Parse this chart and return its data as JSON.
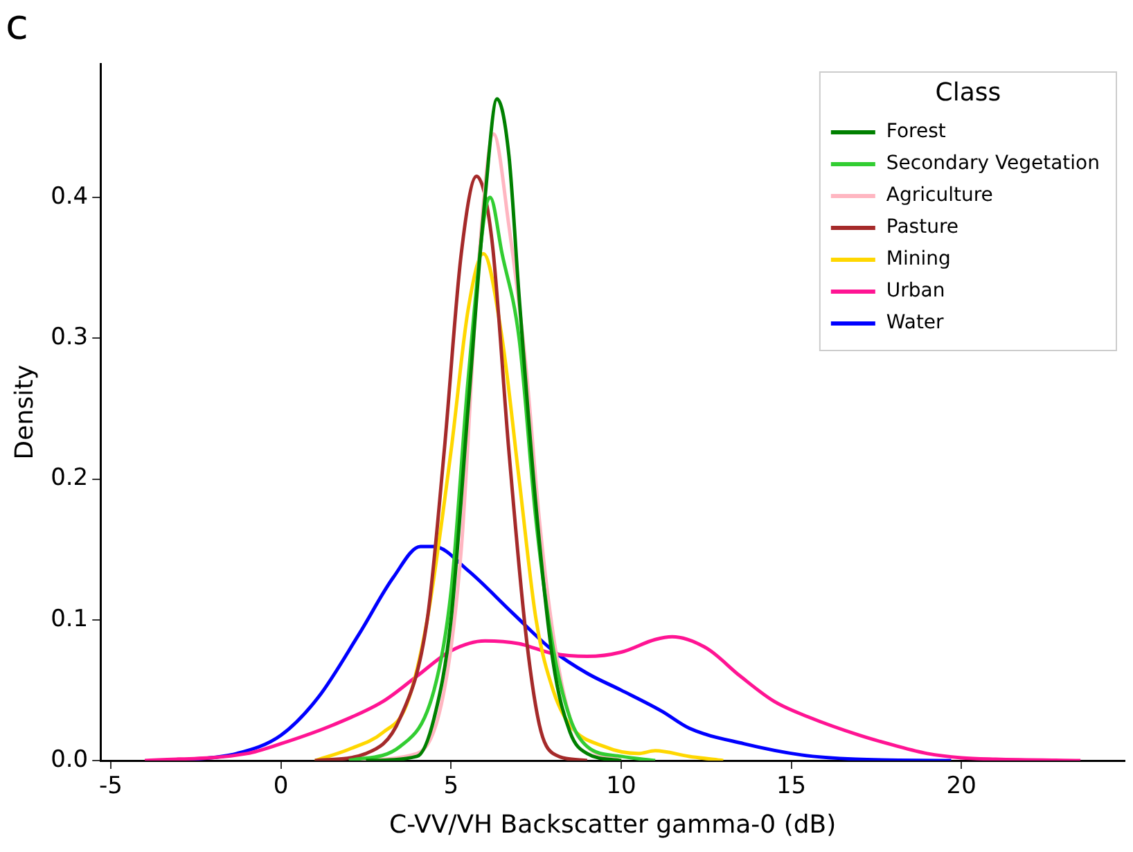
{
  "chart_data": {
    "type": "line",
    "title": "c",
    "xlabel": "C-VV/VH Backscatter gamma-0 (dB)",
    "ylabel": "Density",
    "legend_title": "Class",
    "legend": "top right",
    "grid": false,
    "marker": "none",
    "line_style": "solid",
    "xlim": [
      -5.3,
      24.8
    ],
    "ylim": [
      0,
      0.495
    ],
    "xticks": [
      -5,
      0,
      5,
      10,
      15,
      20
    ],
    "yticks": [
      {
        "value": 0,
        "label": "0.0"
      },
      {
        "value": 0.1,
        "label": "0.1"
      },
      {
        "value": 0.2,
        "label": "0.2"
      },
      {
        "value": 0.3,
        "label": "0.3"
      },
      {
        "value": 0.4,
        "label": "0.4"
      }
    ],
    "series": [
      {
        "name": "Forest",
        "color": "#008000",
        "x": [
          2.5,
          4,
          4.5,
          5,
          5.5,
          6,
          6.35,
          6.7,
          7,
          7.5,
          8,
          8.5,
          9,
          10
        ],
        "values": [
          0,
          0.003,
          0.03,
          0.1,
          0.25,
          0.4,
          0.47,
          0.43,
          0.33,
          0.18,
          0.07,
          0.02,
          0.005,
          0
        ]
      },
      {
        "name": "Secondary Vegetation",
        "color": "#32cd32",
        "x": [
          2,
          3.5,
          4.5,
          5,
          5.5,
          6,
          6.15,
          6.5,
          7,
          7.5,
          8,
          8.5,
          9,
          10,
          11
        ],
        "values": [
          0,
          0.01,
          0.05,
          0.12,
          0.27,
          0.39,
          0.4,
          0.36,
          0.3,
          0.17,
          0.08,
          0.03,
          0.01,
          0.003,
          0
        ]
      },
      {
        "name": "Agriculture",
        "color": "#ffb6c1",
        "x": [
          2,
          4,
          4.8,
          5.3,
          5.8,
          6.25,
          6.7,
          7.2,
          7.6,
          8,
          8.5,
          9,
          10
        ],
        "values": [
          0,
          0.005,
          0.05,
          0.15,
          0.35,
          0.445,
          0.38,
          0.28,
          0.17,
          0.09,
          0.03,
          0.01,
          0
        ]
      },
      {
        "name": "Pasture",
        "color": "#a52a2a",
        "x": [
          1,
          2.5,
          3.5,
          4.3,
          4.8,
          5.3,
          5.75,
          6.2,
          6.7,
          7.2,
          7.6,
          8,
          9
        ],
        "values": [
          0,
          0.005,
          0.03,
          0.1,
          0.22,
          0.36,
          0.415,
          0.37,
          0.22,
          0.09,
          0.025,
          0.005,
          0
        ]
      },
      {
        "name": "Mining",
        "color": "#ffd700",
        "x": [
          1,
          2,
          3,
          3.7,
          4.3,
          5,
          5.5,
          5.95,
          6.5,
          7,
          7.5,
          8,
          8.5,
          9.5,
          10.5,
          11,
          12,
          13
        ],
        "values": [
          0,
          0.008,
          0.02,
          0.04,
          0.1,
          0.22,
          0.32,
          0.36,
          0.3,
          0.2,
          0.1,
          0.05,
          0.025,
          0.01,
          0.005,
          0.007,
          0.003,
          0
        ]
      },
      {
        "name": "Urban",
        "color": "#ff1493",
        "x": [
          -4,
          -1,
          0,
          1.5,
          3,
          4,
          5,
          6,
          7,
          8,
          9,
          10,
          11,
          11.5,
          12.5,
          13.5,
          14.5,
          15.5,
          17,
          18,
          19,
          20,
          21,
          23.5
        ],
        "values": [
          0,
          0.005,
          0.012,
          0.025,
          0.042,
          0.06,
          0.078,
          0.085,
          0.083,
          0.076,
          0.074,
          0.077,
          0.086,
          0.088,
          0.08,
          0.06,
          0.042,
          0.031,
          0.018,
          0.011,
          0.005,
          0.002,
          0.001,
          0
        ]
      },
      {
        "name": "Water",
        "color": "#0000ff",
        "x": [
          -3,
          -1.3,
          0,
          1.1,
          2.3,
          3.3,
          4.1,
          4.5,
          5.5,
          6.8,
          8,
          9,
          10,
          11.2,
          12,
          13.6,
          15.3,
          16.9,
          19.7
        ],
        "values": [
          0,
          0.005,
          0.018,
          0.045,
          0.09,
          0.13,
          0.152,
          0.152,
          0.135,
          0.105,
          0.078,
          0.062,
          0.05,
          0.035,
          0.023,
          0.012,
          0.004,
          0.001,
          0
        ]
      }
    ]
  }
}
